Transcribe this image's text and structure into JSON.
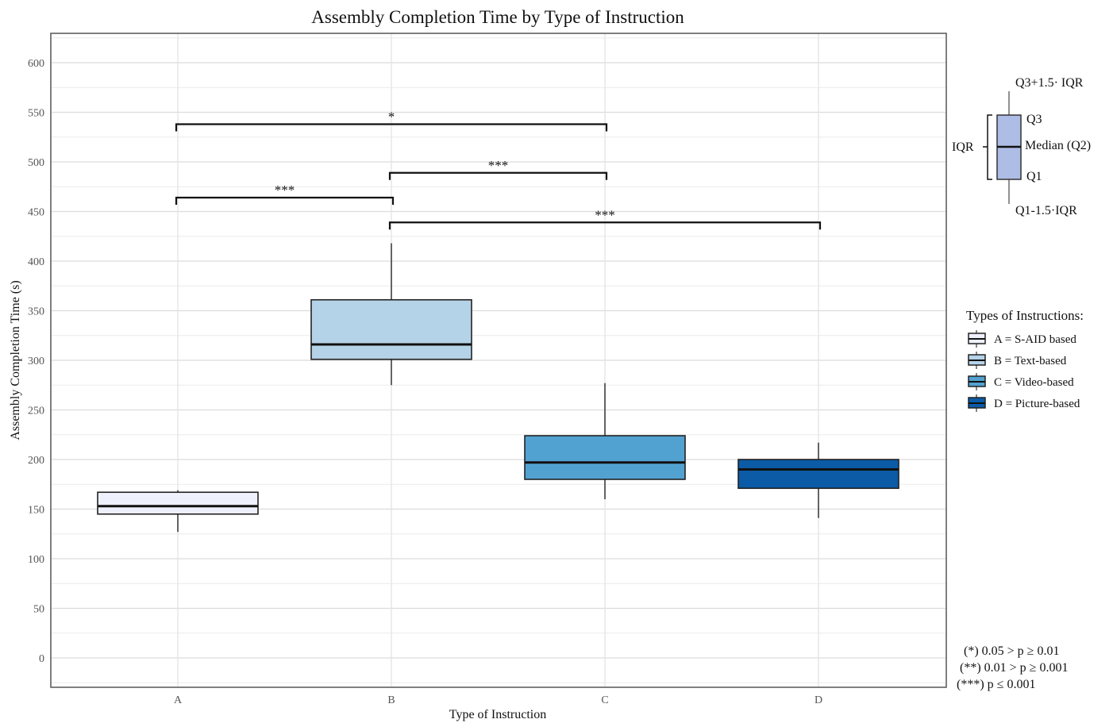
{
  "chart_data": {
    "type": "boxplot",
    "title": "Assembly Completion Time by Type of Instruction",
    "xlabel": "Type of Instruction",
    "ylabel": "Assembly Completion Time (s)",
    "ylim": [
      -30,
      630
    ],
    "yticks": [
      0,
      50,
      100,
      150,
      200,
      250,
      300,
      350,
      400,
      450,
      500,
      550,
      600
    ],
    "categories": [
      "A",
      "B",
      "C",
      "D"
    ],
    "boxes": [
      {
        "category": "A",
        "whisker_low": 127,
        "q1": 145,
        "median": 153,
        "q3": 167,
        "whisker_high": 169,
        "color": "#eef1fb"
      },
      {
        "category": "B",
        "whisker_low": 275,
        "q1": 301,
        "median": 316,
        "q3": 361,
        "whisker_high": 418,
        "color": "#b5d3e8"
      },
      {
        "category": "C",
        "whisker_low": 160,
        "q1": 180,
        "median": 197,
        "q3": 224,
        "whisker_high": 277,
        "color": "#52a2d1"
      },
      {
        "category": "D",
        "whisker_low": 141,
        "q1": 171,
        "median": 190,
        "q3": 200,
        "whisker_high": 217,
        "color": "#0b5ba6"
      }
    ],
    "significance": [
      {
        "from": "A",
        "to": "C",
        "y": 538,
        "label": "*"
      },
      {
        "from": "B",
        "to": "C",
        "y": 489,
        "label": "***"
      },
      {
        "from": "A",
        "to": "B",
        "y": 464,
        "label": "***"
      },
      {
        "from": "B",
        "to": "D",
        "y": 439,
        "label": "***"
      }
    ],
    "grid": true,
    "legend": {
      "title": "Types of Instructions:",
      "items": [
        {
          "label": "A = S-AID based",
          "color": "#eef1fb"
        },
        {
          "label": "B = Text-based",
          "color": "#b5d3e8"
        },
        {
          "label": "C = Video-based",
          "color": "#52a2d1"
        },
        {
          "label": "D = Picture-based",
          "color": "#0b5ba6"
        }
      ],
      "placement": "right"
    },
    "box_key": {
      "upper": "Q3+1.5· IQR",
      "q3": "Q3",
      "median": "Median (Q2)",
      "q1": "Q1",
      "lower": "Q1-1.5·IQR",
      "iqr": "IQR",
      "color": "#aebde6"
    },
    "footnotes": [
      "(*)  0.05 > p ≥ 0.01",
      "(**) 0.01 > p ≥ 0.001",
      "(***) p ≤ 0.001"
    ]
  }
}
